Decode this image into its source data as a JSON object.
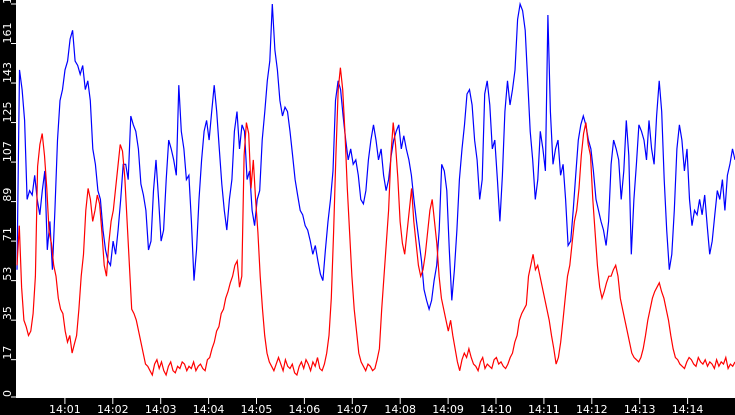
{
  "chart_data": {
    "type": "line",
    "title": "",
    "xlabel": "",
    "ylabel": "",
    "ylim": [
      0,
      179
    ],
    "grid": false,
    "legend": null,
    "background": "#ffffff",
    "frame_color": "#000000",
    "y_ticks": [
      0,
      17,
      35,
      53,
      71,
      89,
      107,
      125,
      143,
      161,
      179
    ],
    "x_ticks": [
      "14:01",
      "14:02",
      "14:03",
      "14:04",
      "14:05",
      "14:06",
      "14:07",
      "14:08",
      "14:09",
      "14:10",
      "14:11",
      "14:12",
      "14:13",
      "14:14"
    ],
    "x_start": "14:00:00",
    "x_step_seconds": 5,
    "series": [
      {
        "name": "blue",
        "color": "#0000ff",
        "values": [
          58,
          149,
          140,
          126,
          90,
          94,
          92,
          101,
          90,
          83,
          94,
          103,
          67,
          80,
          58,
          85,
          117,
          135,
          140,
          149,
          153,
          163,
          167,
          153,
          151,
          147,
          151,
          140,
          144,
          135,
          113,
          106,
          94,
          90,
          76,
          67,
          62,
          60,
          71,
          65,
          76,
          90,
          106,
          106,
          99,
          128,
          124,
          121,
          113,
          97,
          92,
          85,
          67,
          71,
          94,
          108,
          90,
          71,
          76,
          99,
          117,
          113,
          108,
          101,
          142,
          121,
          113,
          99,
          101,
          80,
          53,
          67,
          90,
          108,
          121,
          126,
          117,
          130,
          142,
          130,
          113,
          97,
          85,
          76,
          90,
          99,
          121,
          130,
          113,
          124,
          121,
          99,
          103,
          85,
          78,
          90,
          94,
          117,
          130,
          144,
          153,
          179,
          158,
          149,
          135,
          128,
          132,
          130,
          121,
          110,
          99,
          92,
          85,
          83,
          78,
          76,
          71,
          65,
          69,
          62,
          56,
          53,
          67,
          80,
          90,
          103,
          135,
          144,
          140,
          128,
          117,
          108,
          113,
          106,
          108,
          101,
          90,
          88,
          94,
          108,
          117,
          124,
          117,
          108,
          113,
          101,
          94,
          99,
          110,
          117,
          121,
          124,
          113,
          119,
          113,
          108,
          101,
          90,
          80,
          71,
          62,
          49,
          44,
          40,
          44,
          53,
          60,
          76,
          106,
          103,
          94,
          67,
          44,
          58,
          76,
          99,
          113,
          124,
          138,
          140,
          133,
          117,
          108,
          90,
          99,
          138,
          144,
          133,
          113,
          117,
          99,
          80,
          101,
          130,
          144,
          133,
          140,
          149,
          172,
          179,
          176,
          167,
          144,
          121,
          108,
          90,
          99,
          121,
          113,
          103,
          174,
          130,
          106,
          113,
          117,
          101,
          106,
          90,
          69,
          71,
          85,
          101,
          117,
          124,
          128,
          124,
          117,
          113,
          103,
          90,
          85,
          80,
          76,
          69,
          80,
          106,
          117,
          113,
          108,
          90,
          103,
          126,
          110,
          65,
          90,
          106,
          124,
          121,
          117,
          108,
          126,
          113,
          106,
          128,
          144,
          130,
          99,
          76,
          58,
          65,
          85,
          113,
          124,
          117,
          103,
          113,
          90,
          78,
          85,
          83,
          90,
          83,
          92,
          78,
          65,
          71,
          83,
          94,
          90,
          99,
          85,
          101,
          106,
          113,
          108
        ]
      },
      {
        "name": "red",
        "color": "#ff0000",
        "values": [
          60,
          78,
          50,
          35,
          32,
          28,
          30,
          38,
          55,
          105,
          115,
          120,
          110,
          95,
          75,
          70,
          60,
          55,
          45,
          40,
          38,
          30,
          25,
          28,
          20,
          24,
          28,
          40,
          55,
          65,
          85,
          95,
          90,
          80,
          85,
          92,
          88,
          75,
          60,
          55,
          70,
          80,
          85,
          95,
          105,
          115,
          112,
          100,
          80,
          60,
          40,
          38,
          35,
          30,
          25,
          20,
          15,
          14,
          12,
          10,
          15,
          17,
          13,
          16,
          12,
          10,
          14,
          16,
          12,
          11,
          14,
          13,
          16,
          15,
          12,
          14,
          13,
          16,
          12,
          14,
          15,
          13,
          12,
          17,
          18,
          22,
          25,
          30,
          32,
          38,
          40,
          45,
          48,
          52,
          55,
          60,
          62,
          50,
          55,
          110,
          125,
          120,
          95,
          108,
          90,
          75,
          55,
          40,
          28,
          20,
          16,
          14,
          12,
          15,
          18,
          15,
          12,
          17,
          14,
          13,
          15,
          11,
          10,
          14,
          16,
          13,
          17,
          15,
          12,
          16,
          14,
          18,
          13,
          12,
          15,
          20,
          28,
          45,
          75,
          110,
          140,
          150,
          140,
          120,
          95,
          75,
          55,
          40,
          30,
          20,
          16,
          14,
          12,
          15,
          14,
          12,
          13,
          17,
          22,
          40,
          55,
          70,
          85,
          110,
          125,
          115,
          100,
          80,
          70,
          65,
          75,
          85,
          95,
          80,
          70,
          60,
          55,
          58,
          65,
          75,
          85,
          90,
          80,
          70,
          55,
          45,
          40,
          35,
          30,
          35,
          28,
          22,
          16,
          12,
          17,
          20,
          18,
          22,
          18,
          15,
          14,
          12,
          16,
          18,
          13,
          15,
          14,
          13,
          17,
          18,
          15,
          16,
          14,
          13,
          15,
          18,
          20,
          25,
          28,
          35,
          38,
          40,
          42,
          55,
          60,
          65,
          58,
          60,
          55,
          50,
          45,
          40,
          35,
          28,
          22,
          15,
          18,
          25,
          35,
          45,
          55,
          60,
          70,
          80,
          85,
          95,
          110,
          120,
          125,
          115,
          110,
          90,
          75,
          60,
          50,
          45,
          48,
          52,
          55,
          55,
          58,
          60,
          55,
          45,
          40,
          35,
          30,
          25,
          20,
          18,
          17,
          16,
          18,
          22,
          28,
          35,
          40,
          45,
          48,
          50,
          52,
          48,
          45,
          40,
          35,
          28,
          22,
          18,
          17,
          15,
          14,
          13,
          16,
          18,
          17,
          15,
          14,
          18,
          16,
          15,
          17,
          14,
          16,
          15,
          13,
          17,
          14,
          16,
          15,
          18,
          13,
          15,
          14,
          16
        ]
      }
    ]
  }
}
